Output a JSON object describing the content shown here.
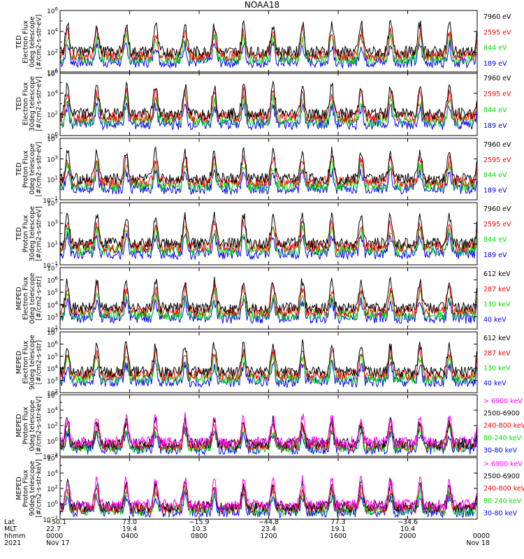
{
  "title": "NOAA18",
  "colors": {
    "black": "#000000",
    "red": "#ff0000",
    "green": "#00e000",
    "blue": "#0000ff",
    "magenta": "#ff00ff"
  },
  "footer": {
    "row_labels": [
      "Lat",
      "MLT",
      "hhmm",
      "2021"
    ],
    "columns": [
      {
        "lat": "−50.1",
        "mlt": "22.7",
        "hhmm": "0000",
        "date": "Nov 17"
      },
      {
        "lat": "73.0",
        "mlt": "19.4",
        "hhmm": "0400",
        "date": ""
      },
      {
        "lat": "−15.9",
        "mlt": "10.3",
        "hhmm": "0800",
        "date": ""
      },
      {
        "lat": "−44.8",
        "mlt": "23.4",
        "hhmm": "1200",
        "date": ""
      },
      {
        "lat": "77.3",
        "mlt": "19.1",
        "hhmm": "1600",
        "date": ""
      },
      {
        "lat": "−34.6",
        "mlt": "10.4",
        "hhmm": "2000",
        "date": ""
      },
      {
        "lat": "",
        "mlt": "",
        "hhmm": "0000",
        "date": "Nov 18"
      }
    ]
  },
  "chart_data": [
    {
      "type": "line",
      "ylabel_lines": [
        "TED",
        "Electron Flux",
        "0deg telescope",
        "[#/cm2-s-str-eV]"
      ],
      "ylim": [
        1,
        1000000
      ],
      "log": true,
      "tick_exponents": [
        0,
        2,
        4,
        6
      ],
      "series": [
        {
          "name": "7960 eV",
          "color": "black"
        },
        {
          "name": "2595 eV",
          "color": "red"
        },
        {
          "name": "844 eV",
          "color": "green"
        },
        {
          "name": "189 eV",
          "color": "blue"
        }
      ]
    },
    {
      "type": "line",
      "ylabel_lines": [
        "TED",
        "Electron Flux",
        "30deg telescope",
        "[#/cm2-s-str-eV]"
      ],
      "ylim": [
        1,
        1000000
      ],
      "log": true,
      "tick_exponents": [
        0,
        2,
        4,
        6
      ],
      "series": [
        {
          "name": "7960 eV",
          "color": "black"
        },
        {
          "name": "2595 eV",
          "color": "red"
        },
        {
          "name": "844 eV",
          "color": "green"
        },
        {
          "name": "189 eV",
          "color": "blue"
        }
      ]
    },
    {
      "type": "line",
      "ylabel_lines": [
        "TED",
        "Proton Flux",
        "0deg telescope",
        "[#/cm2-s-str-eV]"
      ],
      "ylim": [
        0.1,
        100000
      ],
      "log": true,
      "tick_exponents": [
        -1,
        1,
        3,
        5
      ],
      "series": [
        {
          "name": "7960 eV",
          "color": "black"
        },
        {
          "name": "2595 eV",
          "color": "red"
        },
        {
          "name": "844 eV",
          "color": "green"
        },
        {
          "name": "189 eV",
          "color": "blue"
        }
      ]
    },
    {
      "type": "line",
      "ylabel_lines": [
        "TED",
        "Proton Flux",
        "30deg telescope",
        "[#/cm2-s-str-eV]"
      ],
      "ylim": [
        0.1,
        100000
      ],
      "log": true,
      "tick_exponents": [
        -1,
        1,
        3,
        5
      ],
      "series": [
        {
          "name": "7960 eV",
          "color": "black"
        },
        {
          "name": "2595 eV",
          "color": "red"
        },
        {
          "name": "844 eV",
          "color": "green"
        },
        {
          "name": "189 eV",
          "color": "blue"
        }
      ]
    },
    {
      "type": "line",
      "ylabel_lines": [
        "MEPED",
        "Electron Flux",
        "0deg telescope",
        "[#/cm2-s-str]"
      ],
      "ylim": [
        100,
        10000000
      ],
      "log": true,
      "tick_exponents": [
        2,
        3,
        4,
        5,
        6,
        7
      ],
      "series": [
        {
          "name": "612 keV",
          "color": "black"
        },
        {
          "name": "287 keV",
          "color": "red"
        },
        {
          "name": "130 keV",
          "color": "green"
        },
        {
          "name": "40 keV",
          "color": "blue"
        }
      ]
    },
    {
      "type": "line",
      "ylabel_lines": [
        "MEPED",
        "Electron Flux",
        "90deg telescope",
        "[#/cm2-s-str]"
      ],
      "ylim": [
        100,
        10000000
      ],
      "log": true,
      "tick_exponents": [
        2,
        3,
        4,
        5,
        6,
        7
      ],
      "series": [
        {
          "name": "612 keV",
          "color": "black"
        },
        {
          "name": "287 keV",
          "color": "red"
        },
        {
          "name": "130 keV",
          "color": "green"
        },
        {
          "name": "40 keV",
          "color": "blue"
        }
      ]
    },
    {
      "type": "line",
      "ylabel_lines": [
        "MEPED",
        "Proton Flux",
        "0deg telescope",
        "[#/cm2-s-str-keV]"
      ],
      "ylim": [
        0.01,
        1000000
      ],
      "log": true,
      "tick_exponents": [
        -2,
        0,
        2,
        4,
        6
      ],
      "series": [
        {
          "name": "> 6900 keV",
          "color": "magenta"
        },
        {
          "name": "2500-6900",
          "color": "black"
        },
        {
          "name": "240-800 keV",
          "color": "red"
        },
        {
          "name": "80-240 keV",
          "color": "green"
        },
        {
          "name": "30-80 keV",
          "color": "blue"
        }
      ]
    },
    {
      "type": "line",
      "ylabel_lines": [
        "MEPED",
        "Proton Flux",
        "90deg telescope",
        "[#/cm2-s-str-keV]"
      ],
      "ylim": [
        0.01,
        1000000
      ],
      "log": true,
      "tick_exponents": [
        -2,
        0,
        2,
        4,
        6
      ],
      "series": [
        {
          "name": "> 6900 keV",
          "color": "magenta"
        },
        {
          "name": "2500-6900",
          "color": "black"
        },
        {
          "name": "240-800 keV",
          "color": "red"
        },
        {
          "name": "80-240 keV",
          "color": "green"
        },
        {
          "name": "30-80 keV",
          "color": "blue"
        }
      ]
    }
  ]
}
